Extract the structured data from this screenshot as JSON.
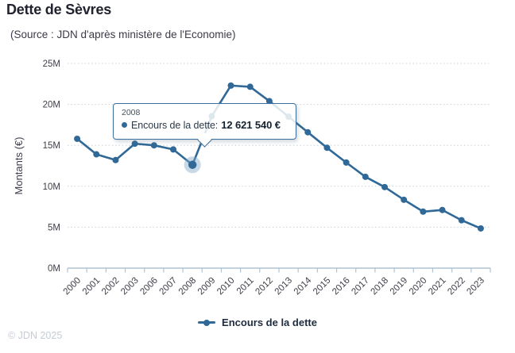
{
  "header": {
    "title": "Dette de Sèvres",
    "subtitle": "(Source : JDN d'après ministère de l'Economie)"
  },
  "chart_data": {
    "type": "line",
    "title": "Dette de Sèvres",
    "categories": [
      "2000",
      "2001",
      "2002",
      "2003",
      "2006",
      "2007",
      "2008",
      "2009",
      "2010",
      "2011",
      "2012",
      "2013",
      "2014",
      "2015",
      "2016",
      "2017",
      "2018",
      "2019",
      "2020",
      "2021",
      "2022",
      "2023"
    ],
    "series": [
      {
        "name": "Encours de la dette",
        "values_millions_eur": [
          15.8,
          13.9,
          13.2,
          15.2,
          15.0,
          14.5,
          12.62154,
          18.55,
          22.3,
          22.15,
          20.4,
          18.5,
          16.6,
          14.7,
          12.9,
          11.15,
          9.9,
          8.35,
          6.9,
          7.1,
          5.85,
          4.85
        ]
      }
    ],
    "xlabel": "",
    "ylabel": "Montants (€)",
    "ylim": [
      0,
      25
    ],
    "ytick_labels": [
      "0M",
      "5M",
      "10M",
      "15M",
      "20M",
      "25M"
    ],
    "grid": "horizontal-dotted",
    "legend_position": "bottom-center",
    "colors": {
      "series": "#306997",
      "halo": "rgba(130,168,200,0.45)",
      "axis": "#aec3d4",
      "gridline": "#cdd0d6",
      "tick_text": "#3e3e4a"
    }
  },
  "tooltip": {
    "year": "2008",
    "series_label": "Encours de la dette:",
    "value": "12 621 540 €"
  },
  "legend": {
    "label": "Encours de la dette"
  },
  "footer": {
    "copyright": "© JDN 2025"
  }
}
